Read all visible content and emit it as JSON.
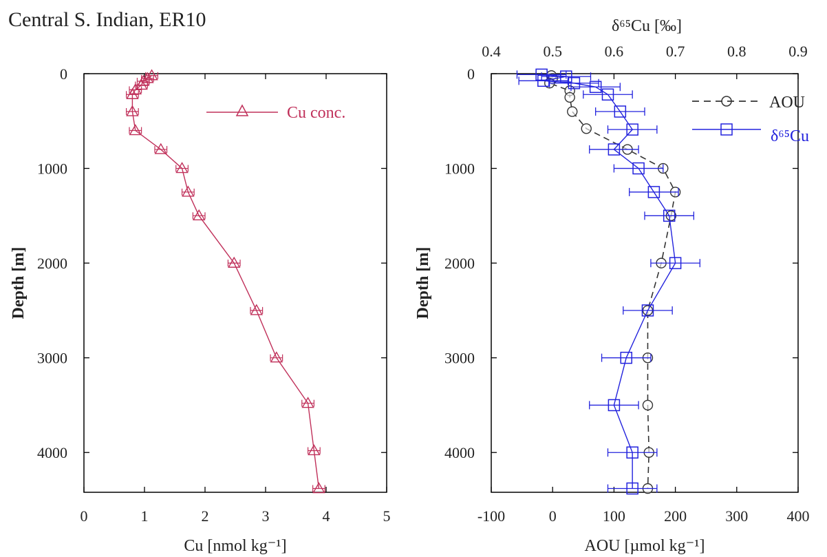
{
  "figure": {
    "title": "Central S. Indian, ER10"
  },
  "chart_data": [
    {
      "type": "line",
      "panel": "left",
      "xlabel": "Cu [nmol kg⁻¹]",
      "ylabel": "Depth [m]",
      "xlim": [
        0,
        5
      ],
      "ylim": [
        4420,
        0
      ],
      "xticks": [
        0,
        1,
        2,
        3,
        4,
        5
      ],
      "yticks": [
        0,
        1000,
        2000,
        3000,
        4000
      ],
      "legend": {
        "position": "top-right"
      },
      "series": [
        {
          "name": "Cu conc.",
          "color": "#c0305a",
          "marker": "triangle",
          "xerr": 0.1,
          "points": [
            {
              "x": 1.12,
              "y": 20
            },
            {
              "x": 1.05,
              "y": 50
            },
            {
              "x": 0.98,
              "y": 80
            },
            {
              "x": 0.95,
              "y": 120
            },
            {
              "x": 0.85,
              "y": 170
            },
            {
              "x": 0.8,
              "y": 220
            },
            {
              "x": 0.8,
              "y": 400
            },
            {
              "x": 0.85,
              "y": 600
            },
            {
              "x": 1.27,
              "y": 800
            },
            {
              "x": 1.62,
              "y": 1000
            },
            {
              "x": 1.72,
              "y": 1250
            },
            {
              "x": 1.9,
              "y": 1500
            },
            {
              "x": 2.48,
              "y": 2000
            },
            {
              "x": 2.85,
              "y": 2500
            },
            {
              "x": 3.18,
              "y": 3000
            },
            {
              "x": 3.7,
              "y": 3480
            },
            {
              "x": 3.8,
              "y": 3980
            },
            {
              "x": 3.88,
              "y": 4380
            }
          ]
        }
      ]
    },
    {
      "type": "line",
      "panel": "right",
      "xlabel": "AOU [µmol kg⁻¹]",
      "xlabel_top": "δ⁶⁵Cu [‰]",
      "ylabel": "Depth [m]",
      "xlim": [
        -100,
        400
      ],
      "xlim_top": [
        0.4,
        0.9
      ],
      "ylim": [
        4420,
        0
      ],
      "xticks": [
        -100,
        0,
        100,
        200,
        300,
        400
      ],
      "xticks_top": [
        "0.4",
        "0.5",
        "0.6",
        "0.7",
        "0.8",
        "0.9"
      ],
      "yticks": [
        0,
        1000,
        2000,
        3000,
        4000
      ],
      "legend": {
        "position": "top-right"
      },
      "series": [
        {
          "name": "AOU",
          "axis": "bottom",
          "color": "#333333",
          "marker": "circle",
          "line_style": "dashed",
          "points": [
            {
              "x": -2,
              "y": 20
            },
            {
              "x": 0,
              "y": 50
            },
            {
              "x": -5,
              "y": 100
            },
            {
              "x": 28,
              "y": 180
            },
            {
              "x": 28,
              "y": 250
            },
            {
              "x": 32,
              "y": 400
            },
            {
              "x": 55,
              "y": 580
            },
            {
              "x": 122,
              "y": 800
            },
            {
              "x": 180,
              "y": 1000
            },
            {
              "x": 200,
              "y": 1250
            },
            {
              "x": 193,
              "y": 1500
            },
            {
              "x": 177,
              "y": 2000
            },
            {
              "x": 155,
              "y": 2500
            },
            {
              "x": 155,
              "y": 3000
            },
            {
              "x": 155,
              "y": 3500
            },
            {
              "x": 157,
              "y": 4000
            },
            {
              "x": 155,
              "y": 4380
            }
          ]
        },
        {
          "name": "δ⁶⁵Cu",
          "axis": "top",
          "color": "#2222dd",
          "marker": "square",
          "xerr": 0.04,
          "points": [
            {
              "x": 0.482,
              "y": 10
            },
            {
              "x": 0.522,
              "y": 30
            },
            {
              "x": 0.485,
              "y": 75
            },
            {
              "x": 0.535,
              "y": 100
            },
            {
              "x": 0.57,
              "y": 140
            },
            {
              "x": 0.59,
              "y": 220
            },
            {
              "x": 0.61,
              "y": 400
            },
            {
              "x": 0.63,
              "y": 590
            },
            {
              "x": 0.6,
              "y": 800
            },
            {
              "x": 0.64,
              "y": 1000
            },
            {
              "x": 0.665,
              "y": 1250
            },
            {
              "x": 0.69,
              "y": 1500
            },
            {
              "x": 0.7,
              "y": 2000
            },
            {
              "x": 0.655,
              "y": 2500
            },
            {
              "x": 0.62,
              "y": 3000
            },
            {
              "x": 0.6,
              "y": 3500
            },
            {
              "x": 0.63,
              "y": 4000
            },
            {
              "x": 0.63,
              "y": 4380
            }
          ]
        }
      ]
    }
  ]
}
